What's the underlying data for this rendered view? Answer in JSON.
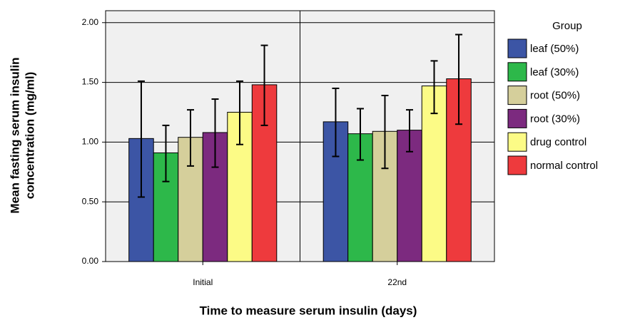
{
  "chart_data": {
    "type": "bar",
    "x_label": "Time to measure serum insulin (days)",
    "y_label": [
      "Mean fasting serum insulin",
      "concentration (mg/ml)"
    ],
    "legend_title": "Group",
    "legend_position": "right",
    "categories": [
      "Initial",
      "22nd"
    ],
    "series": [
      {
        "name": "leaf (50%)",
        "color": "#3c55a5",
        "values": [
          1.03,
          1.17
        ],
        "ci_low": [
          0.54,
          0.88
        ],
        "ci_high": [
          1.51,
          1.45
        ]
      },
      {
        "name": "leaf (30%)",
        "color": "#2db84a",
        "values": [
          0.91,
          1.07
        ],
        "ci_low": [
          0.67,
          0.85
        ],
        "ci_high": [
          1.14,
          1.28
        ]
      },
      {
        "name": "root (50%)",
        "color": "#d5cf9b",
        "values": [
          1.04,
          1.09
        ],
        "ci_low": [
          0.8,
          0.78
        ],
        "ci_high": [
          1.27,
          1.39
        ]
      },
      {
        "name": "root (30%)",
        "color": "#7c2a7f",
        "values": [
          1.08,
          1.1
        ],
        "ci_low": [
          0.79,
          0.92
        ],
        "ci_high": [
          1.36,
          1.27
        ]
      },
      {
        "name": "drug control",
        "color": "#fcfb86",
        "values": [
          1.25,
          1.47
        ],
        "ci_low": [
          0.98,
          1.24
        ],
        "ci_high": [
          1.51,
          1.68
        ]
      },
      {
        "name": "normal control",
        "color": "#ee3a3d",
        "values": [
          1.48,
          1.53
        ],
        "ci_low": [
          1.14,
          1.15
        ],
        "ci_high": [
          1.81,
          1.9
        ]
      }
    ],
    "ylim": [
      0,
      2.1
    ],
    "yticks": [
      {
        "value": 0,
        "label": "0.00"
      },
      {
        "value": 0.5,
        "label": "0.50"
      },
      {
        "value": 1,
        "label": "1.00"
      },
      {
        "value": 1.5,
        "label": "1.50"
      },
      {
        "value": 2,
        "label": "2.00"
      }
    ],
    "grid": true
  }
}
